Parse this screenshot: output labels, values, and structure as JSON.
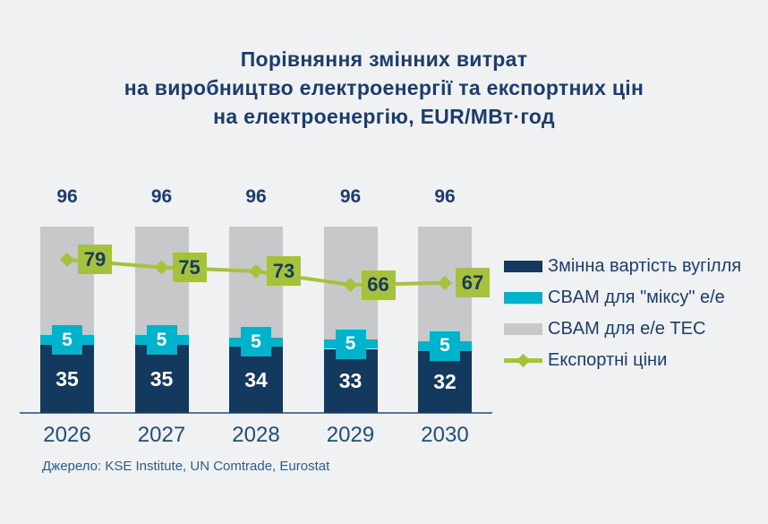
{
  "title": {
    "line1": "Порівняння змінних витрат",
    "line2": "на виробництво електроенергії та експортних цін",
    "line3": "на електроенергію, EUR/МВт·год"
  },
  "source": "Джерело: KSE Institute, UN Comtrade, Eurostat",
  "colors": {
    "background": "#f0f1f2",
    "coal_bar": "#14395f",
    "cbam_mix_bar": "#00b3cc",
    "cbam_tpp_bar": "#c7c8ca",
    "export_line": "#a6c23c",
    "title_text": "#1d3c6e",
    "year_text": "#1f4e79",
    "source_text": "#2e5c8c",
    "axis_line": "#54799c",
    "bar_value_text": "#ffffff",
    "line_label_text": "#17395e"
  },
  "legend": {
    "items": [
      {
        "label": "Змінна вартість вугілля",
        "type": "rect",
        "color": "#14395f"
      },
      {
        "label": "CBAM для \"міксу\" е/е",
        "type": "rect",
        "color": "#00b3cc"
      },
      {
        "label": "CBAM для е/е ТЕС",
        "type": "rect",
        "color": "#c7c8ca"
      },
      {
        "label": "Експортні ціни",
        "type": "line-diamond",
        "color": "#a6c23c"
      }
    ]
  },
  "chart_data": {
    "type": "bar",
    "subtype": "stacked-bar-with-line",
    "title": "Порівняння змінних витрат на виробництво електроенергії та експортних цін на електроенергію, EUR/МВт·год",
    "categories": [
      "2026",
      "2027",
      "2028",
      "2029",
      "2030"
    ],
    "series": [
      {
        "name": "Змінна вартість вугілля",
        "type": "bar",
        "color": "#14395f",
        "values": [
          35,
          35,
          34,
          33,
          32
        ]
      },
      {
        "name": "CBAM для \"міксу\" е/е",
        "type": "bar",
        "color": "#00b3cc",
        "values": [
          5,
          5,
          5,
          5,
          5
        ]
      },
      {
        "name": "CBAM для е/е ТЕС",
        "type": "bar",
        "color": "#c7c8ca",
        "values": [
          56,
          56,
          57,
          58,
          59
        ]
      },
      {
        "name": "Експортні ціни",
        "type": "line",
        "color": "#a6c23c",
        "values": [
          79,
          75,
          73,
          66,
          67
        ]
      }
    ],
    "totals": [
      96,
      96,
      96,
      96,
      96
    ],
    "ylim": [
      0,
      110
    ],
    "grid": false,
    "legend_position": "right",
    "unit": "EUR/МВт·год"
  }
}
